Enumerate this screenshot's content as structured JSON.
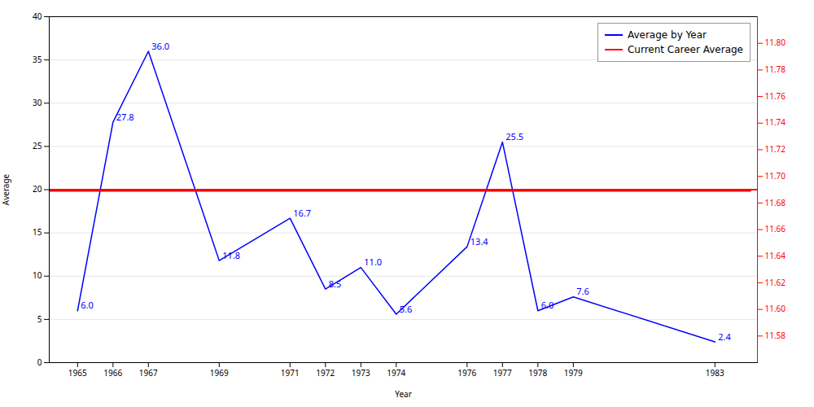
{
  "chart_data": {
    "type": "line",
    "x_label": "Year",
    "y_label": "Average",
    "x": [
      1965,
      1966,
      1967,
      1969,
      1971,
      1972,
      1973,
      1974,
      1976,
      1977,
      1978,
      1979,
      1983
    ],
    "xlim": [
      1964.2,
      1984.2
    ],
    "xticks": [
      1965,
      1966,
      1967,
      1969,
      1971,
      1972,
      1973,
      1974,
      1976,
      1977,
      1978,
      1979,
      1983
    ],
    "ylim": [
      0,
      40
    ],
    "yticks": [
      0,
      5,
      10,
      15,
      20,
      25,
      30,
      35,
      40
    ],
    "y2lim": [
      11.56,
      11.82
    ],
    "y2ticks": [
      11.58,
      {
        "value": 11.6,
        "label": "11.60"
      },
      11.62,
      11.64,
      11.66,
      11.68,
      {
        "value": 11.7,
        "label": "11.70"
      },
      11.72,
      11.74,
      11.76,
      11.78,
      {
        "value": 11.8,
        "label": "11.80"
      }
    ],
    "grid": true,
    "legend": "upper right",
    "data_labels": true,
    "series": [
      {
        "name": "Average by Year",
        "color": "blue",
        "values": [
          6.0,
          27.8,
          36.0,
          11.8,
          16.7,
          8.5,
          11.0,
          5.6,
          13.4,
          25.5,
          6.0,
          7.6,
          2.4
        ],
        "value_labels": [
          "6.0",
          "27.8",
          "36.0",
          "11.8",
          "16.7",
          "8.5",
          "11.0",
          "5.6",
          "13.4",
          "25.5",
          "6.0",
          "7.6",
          "2.4"
        ]
      },
      {
        "name": "Current Career Average",
        "color": "red",
        "x": [
          1964,
          1984
        ],
        "values": [
          19.85,
          19.85
        ]
      },
      {
        "color": "red",
        "axis": "y2",
        "x": [
          1964.2,
          1984.2
        ],
        "values": [
          11.69,
          11.69
        ]
      }
    ]
  }
}
